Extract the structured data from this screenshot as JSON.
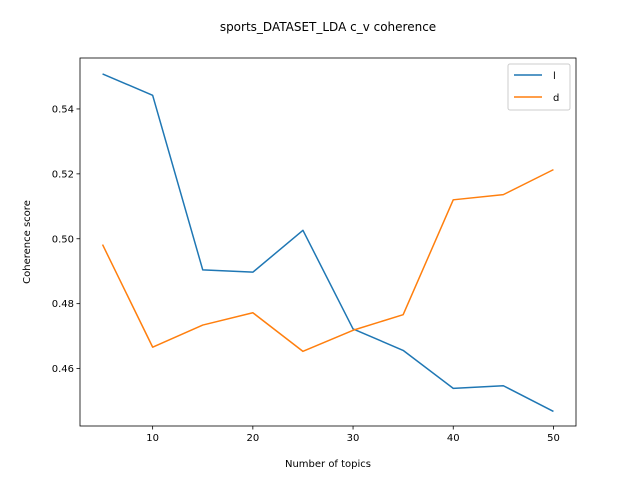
{
  "chart_data": {
    "type": "line",
    "title": "sports_DATASET_LDA c_v coherence",
    "xlabel": "Number of topics",
    "ylabel": "Coherence score",
    "x": [
      5,
      10,
      15,
      20,
      25,
      30,
      35,
      40,
      45,
      50
    ],
    "xlim": [
      2.75,
      52.25
    ],
    "ylim": [
      0.4423,
      0.5557
    ],
    "xticks": [
      10,
      20,
      30,
      40,
      50
    ],
    "yticks": [
      0.46,
      0.48,
      0.5,
      0.52,
      0.54
    ],
    "ytick_labels": [
      "0.46",
      "0.48",
      "0.50",
      "0.52",
      "0.54"
    ],
    "grid": false,
    "legend_position": "top-right",
    "series": [
      {
        "name": "l",
        "color": "#1f77b4",
        "values": [
          0.5508,
          0.5442,
          0.4904,
          0.4897,
          0.5026,
          0.4722,
          0.4656,
          0.4539,
          0.4547,
          0.4468
        ]
      },
      {
        "name": "d",
        "color": "#ff7f0e",
        "values": [
          0.4982,
          0.4666,
          0.4734,
          0.4772,
          0.4653,
          0.4718,
          0.4766,
          0.512,
          0.5136,
          0.5213
        ]
      }
    ]
  }
}
